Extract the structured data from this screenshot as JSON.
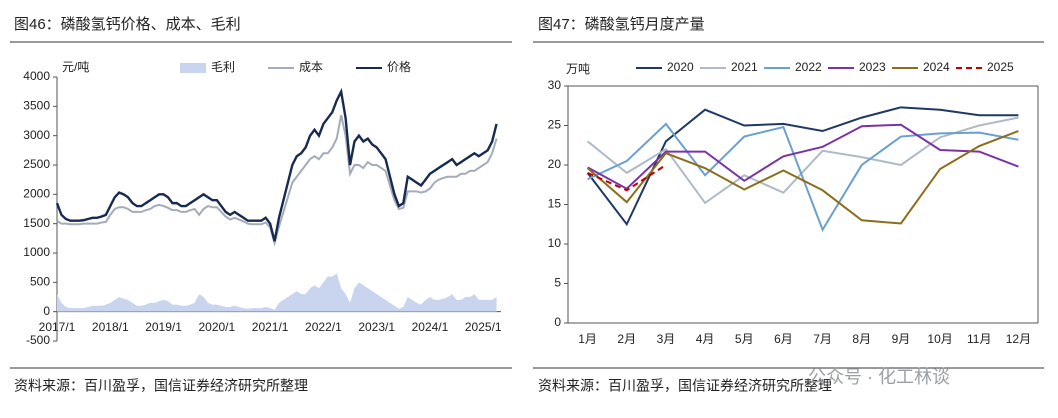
{
  "chart_data": [
    {
      "type": "line",
      "title": "图46：磷酸氢钙价格、成本、毛利",
      "y_label": "元/吨",
      "x": [
        "2017/1",
        "2017/2",
        "2017/3",
        "2017/4",
        "2017/5",
        "2017/6",
        "2017/7",
        "2017/8",
        "2017/9",
        "2017/10",
        "2017/11",
        "2017/12",
        "2018/1",
        "2018/2",
        "2018/3",
        "2018/4",
        "2018/5",
        "2018/6",
        "2018/7",
        "2018/8",
        "2018/9",
        "2018/10",
        "2018/11",
        "2018/12",
        "2019/1",
        "2019/2",
        "2019/3",
        "2019/4",
        "2019/5",
        "2019/6",
        "2019/7",
        "2019/8",
        "2019/9",
        "2019/10",
        "2019/11",
        "2019/12",
        "2020/1",
        "2020/2",
        "2020/3",
        "2020/4",
        "2020/5",
        "2020/6",
        "2020/7",
        "2020/8",
        "2020/9",
        "2020/10",
        "2020/11",
        "2020/12",
        "2021/1",
        "2021/2",
        "2021/3",
        "2021/4",
        "2021/5",
        "2021/6",
        "2021/7",
        "2021/8",
        "2021/9",
        "2021/10",
        "2021/11",
        "2021/12",
        "2022/1",
        "2022/2",
        "2022/3",
        "2022/4",
        "2022/5",
        "2022/6",
        "2022/7",
        "2022/8",
        "2022/9",
        "2022/10",
        "2022/11",
        "2022/12",
        "2023/1",
        "2023/2",
        "2023/3",
        "2023/4",
        "2023/5",
        "2023/6",
        "2023/7",
        "2023/8",
        "2023/9",
        "2023/10",
        "2023/11",
        "2023/12",
        "2024/1",
        "2024/2",
        "2024/3",
        "2024/4",
        "2024/5",
        "2024/6",
        "2024/7",
        "2024/8",
        "2024/9",
        "2024/10",
        "2024/11",
        "2024/12",
        "2025/1",
        "2025/2",
        "2025/3",
        "2025/4"
      ],
      "series": [
        {
          "name": "毛利",
          "type": "area",
          "color": "#c9d5ee",
          "values": [
            300,
            150,
            80,
            60,
            60,
            60,
            60,
            80,
            100,
            100,
            100,
            120,
            150,
            200,
            250,
            220,
            200,
            150,
            100,
            100,
            120,
            150,
            150,
            180,
            200,
            180,
            120,
            120,
            100,
            100,
            120,
            150,
            300,
            250,
            150,
            120,
            120,
            100,
            80,
            80,
            100,
            80,
            60,
            50,
            60,
            60,
            60,
            80,
            60,
            30,
            150,
            200,
            250,
            300,
            350,
            300,
            300,
            400,
            450,
            400,
            500,
            600,
            600,
            650,
            400,
            300,
            150,
            400,
            500,
            450,
            400,
            350,
            300,
            250,
            200,
            150,
            100,
            50,
            80,
            250,
            200,
            150,
            120,
            200,
            250,
            200,
            200,
            220,
            250,
            300,
            200,
            200,
            250,
            250,
            300,
            200,
            200,
            200,
            200,
            250
          ]
        },
        {
          "name": "成本",
          "type": "line",
          "color": "#a3acb8",
          "values": [
            1550,
            1500,
            1500,
            1490,
            1490,
            1490,
            1500,
            1500,
            1500,
            1500,
            1520,
            1530,
            1650,
            1750,
            1780,
            1780,
            1750,
            1700,
            1700,
            1700,
            1730,
            1750,
            1800,
            1820,
            1800,
            1770,
            1730,
            1730,
            1700,
            1700,
            1730,
            1750,
            1650,
            1750,
            1800,
            1780,
            1780,
            1700,
            1620,
            1570,
            1600,
            1570,
            1540,
            1500,
            1490,
            1490,
            1490,
            1520,
            1440,
            1170,
            1450,
            1700,
            1950,
            2200,
            2300,
            2400,
            2500,
            2600,
            2650,
            2600,
            2700,
            2700,
            2800,
            2950,
            3350,
            3000,
            2350,
            2500,
            2500,
            2450,
            2550,
            2500,
            2500,
            2450,
            2400,
            2150,
            1900,
            1750,
            1770,
            2050,
            2050,
            2050,
            2030,
            2050,
            2100,
            2200,
            2250,
            2280,
            2300,
            2300,
            2300,
            2350,
            2350,
            2400,
            2400,
            2450,
            2500,
            2550,
            2700,
            2950
          ]
        },
        {
          "name": "价格",
          "type": "line",
          "color": "#172a4f",
          "values": [
            1850,
            1650,
            1580,
            1550,
            1550,
            1550,
            1560,
            1580,
            1600,
            1600,
            1620,
            1650,
            1800,
            1950,
            2030,
            2000,
            1950,
            1850,
            1800,
            1800,
            1850,
            1900,
            1950,
            2000,
            2000,
            1950,
            1850,
            1850,
            1800,
            1800,
            1850,
            1900,
            1950,
            2000,
            1950,
            1900,
            1900,
            1800,
            1700,
            1650,
            1700,
            1650,
            1600,
            1550,
            1550,
            1550,
            1550,
            1600,
            1500,
            1200,
            1600,
            1900,
            2200,
            2500,
            2650,
            2700,
            2800,
            3000,
            3100,
            3000,
            3200,
            3300,
            3400,
            3600,
            3750,
            3300,
            2500,
            2900,
            3000,
            2900,
            2950,
            2850,
            2800,
            2700,
            2600,
            2300,
            2000,
            1800,
            1850,
            2300,
            2250,
            2200,
            2150,
            2250,
            2350,
            2400,
            2450,
            2500,
            2550,
            2600,
            2500,
            2550,
            2600,
            2650,
            2700,
            2650,
            2700,
            2750,
            2900,
            3200
          ]
        }
      ],
      "xlim": [
        "2017/1",
        "2025/5"
      ],
      "xticks": [
        "2017/1",
        "2018/1",
        "2019/1",
        "2020/1",
        "2021/1",
        "2022/1",
        "2023/1",
        "2024/1",
        "2025/1"
      ],
      "ylim": [
        -500,
        4000
      ],
      "yticks": [
        -500,
        0,
        500,
        1000,
        1500,
        2000,
        2500,
        3000,
        3500,
        4000
      ],
      "legend": "top",
      "source": "资料来源：百川盈孚，国信证券经济研究所整理"
    },
    {
      "type": "line",
      "title": "图47：磷酸氢钙月度产量",
      "y_label": "万吨",
      "categories": [
        "1月",
        "2月",
        "3月",
        "4月",
        "5月",
        "6月",
        "7月",
        "8月",
        "9月",
        "10月",
        "11月",
        "12月"
      ],
      "series": [
        {
          "name": "2020",
          "color": "#1f3864",
          "values": [
            19,
            12.5,
            23,
            27,
            25,
            25.2,
            24.3,
            26,
            27.3,
            27,
            26.3,
            26.3
          ]
        },
        {
          "name": "2021",
          "color": "#aebac8",
          "values": [
            23,
            19,
            22,
            15.2,
            18.7,
            16.5,
            21.8,
            21,
            20,
            23.5,
            25,
            26
          ]
        },
        {
          "name": "2022",
          "color": "#6aa0d0",
          "values": [
            18.2,
            20.5,
            25.2,
            18.7,
            23.6,
            24.8,
            11.8,
            20,
            23.6,
            24,
            24.1,
            23.2
          ]
        },
        {
          "name": "2023",
          "color": "#7a33a6",
          "values": [
            19.7,
            17,
            21.7,
            21.7,
            18,
            21.1,
            22.3,
            24.9,
            25.1,
            21.9,
            21.7,
            19.8
          ]
        },
        {
          "name": "2024",
          "color": "#8c6d1c",
          "values": [
            19.6,
            15.3,
            21.5,
            19.6,
            16.9,
            19.3,
            16.8,
            13,
            12.6,
            19.5,
            22.4,
            24.3
          ]
        },
        {
          "name": "2025",
          "color": "#c00000",
          "dash": true,
          "values": [
            19,
            16.8,
            20,
            null,
            null,
            null,
            null,
            null,
            null,
            null,
            null,
            null
          ]
        }
      ],
      "ylim": [
        0,
        30
      ],
      "yticks": [
        0,
        5,
        10,
        15,
        20,
        25,
        30
      ],
      "legend": "top",
      "source": "资料来源：百川盈孚，国信证券经济研究所整理"
    }
  ],
  "watermark": "公众号 · 化工林谈"
}
